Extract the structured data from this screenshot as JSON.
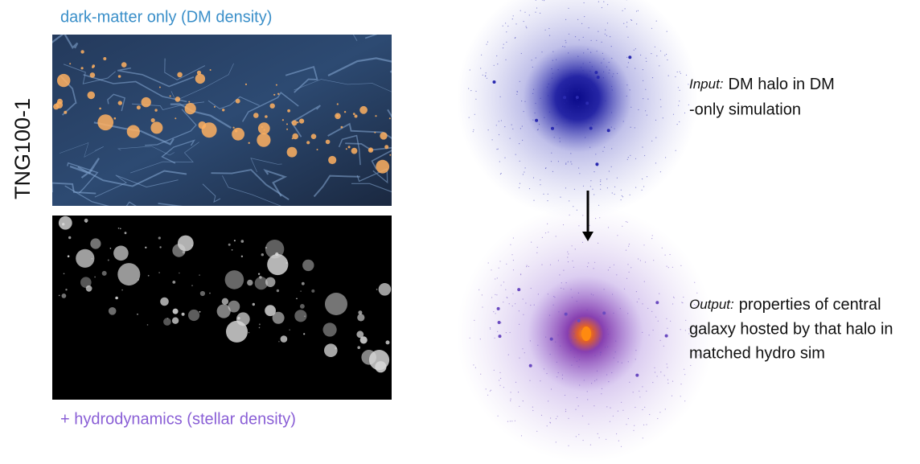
{
  "panels": {
    "dm_label": "dark-matter only (DM density)",
    "hydro_label": "+ hydrodynamics (stellar density)",
    "row_label": "TNG100-1"
  },
  "input": {
    "label": "Input:",
    "text_lines": [
      "DM halo in DM",
      "-only simulation"
    ]
  },
  "output": {
    "label": "Output:",
    "text_lines": [
      "properties of central",
      "galaxy hosted by that halo in",
      "matched hydro sim"
    ]
  }
}
